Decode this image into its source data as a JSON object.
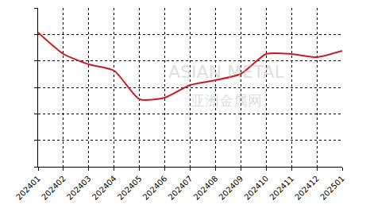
{
  "chart_data": {
    "type": "line",
    "categories": [
      "202401",
      "202402",
      "202403",
      "202404",
      "202405",
      "202406",
      "202407",
      "202408",
      "202409",
      "202410",
      "202411",
      "202412",
      "202501"
    ],
    "values": [
      5.07,
      4.26,
      3.87,
      3.63,
      2.55,
      2.61,
      3.09,
      3.27,
      3.51,
      4.26,
      4.26,
      4.14,
      4.38
    ],
    "color": "#cc1a24",
    "line_style": "solid",
    "marker": "none",
    "ylim": [
      0,
      6
    ],
    "yticks": [
      0,
      1,
      2,
      3,
      4,
      5,
      6
    ],
    "grid": true,
    "tick_labels": "x",
    "annotations": [
      "ASIAN METAL",
      "亚洲金属网"
    ]
  }
}
